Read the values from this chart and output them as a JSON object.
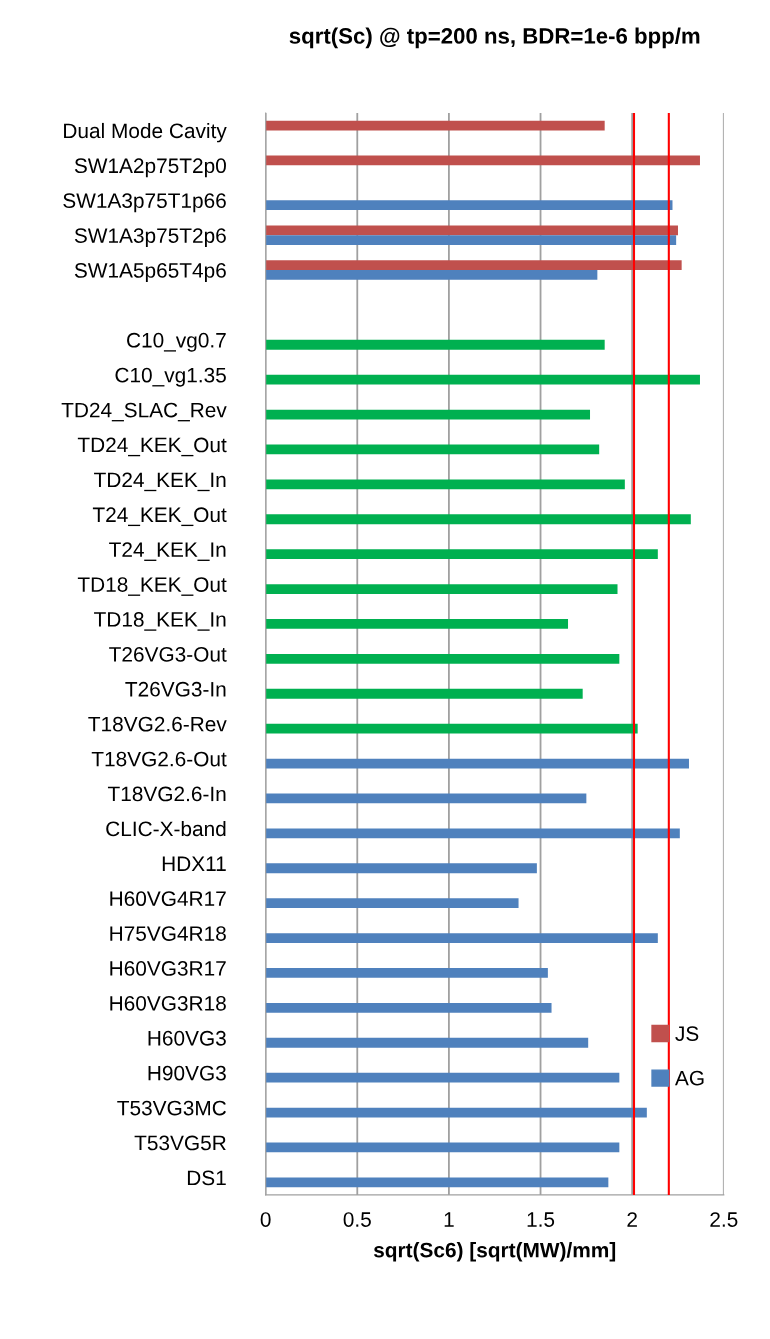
{
  "chart_data": {
    "type": "bar",
    "orientation": "horizontal",
    "title": "sqrt(Sc) @ tp=200 ns, BDR=1e-6 bpp/m",
    "xlabel": "sqrt(Sc6) [sqrt(MW)/mm]",
    "categories": [
      "Dual Mode Cavity",
      "SW1A2p75T2p0",
      "SW1A3p75T1p66",
      "SW1A3p75T2p6",
      "SW1A5p65T4p6",
      null,
      "C10_vg0.7",
      "C10_vg1.35",
      "TD24_SLAC_Rev",
      "TD24_KEK_Out",
      "TD24_KEK_In",
      "T24_KEK_Out",
      "T24_KEK_In",
      "TD18_KEK_Out",
      "TD18_KEK_In",
      "T26VG3-Out",
      "T26VG3-In",
      "T18VG2.6-Rev",
      "T18VG2.6-Out",
      "T18VG2.6-In",
      "CLIC-X-band",
      "HDX11",
      "H60VG4R17",
      "H75VG4R18",
      "H60VG3R17",
      "H60VG3R18",
      "H60VG3",
      "H90VG3",
      "T53VG3MC",
      "T53VG5R",
      "DS1"
    ],
    "series": [
      {
        "name": "JS",
        "color": "#c0504d",
        "values": [
          1.85,
          2.37,
          null,
          2.25,
          2.27,
          null,
          null,
          null,
          null,
          null,
          null,
          null,
          null,
          null,
          null,
          null,
          null,
          null,
          null,
          null,
          null,
          null,
          null,
          null,
          null,
          null,
          null,
          null,
          null,
          null,
          null
        ]
      },
      {
        "name": "AG",
        "color": "#4f81bd",
        "values": [
          null,
          null,
          2.22,
          2.24,
          1.81,
          null,
          1.85,
          2.37,
          1.77,
          1.82,
          1.96,
          2.32,
          2.14,
          1.92,
          1.65,
          1.93,
          1.73,
          2.03,
          2.31,
          1.75,
          2.26,
          1.48,
          1.38,
          2.14,
          1.54,
          1.56,
          1.76,
          1.93,
          2.08,
          1.93,
          1.87
        ],
        "colors": [
          "#4f81bd",
          "#4f81bd",
          "#4f81bd",
          "#4f81bd",
          "#4f81bd",
          "#4f81bd",
          "#00b050",
          "#00b050",
          "#00b050",
          "#00b050",
          "#00b050",
          "#00b050",
          "#00b050",
          "#00b050",
          "#00b050",
          "#00b050",
          "#00b050",
          "#00b050",
          "#4f81bd",
          "#4f81bd",
          "#4f81bd",
          "#4f81bd",
          "#4f81bd",
          "#4f81bd",
          "#4f81bd",
          "#4f81bd",
          "#4f81bd",
          "#4f81bd",
          "#4f81bd",
          "#4f81bd",
          "#4f81bd"
        ]
      }
    ],
    "xlim": [
      0,
      2.5
    ],
    "xticks": [
      0,
      0.5,
      1,
      1.5,
      2,
      2.5
    ],
    "grid": "x",
    "legend": "lower right",
    "ref_lines": [
      {
        "axis": "x",
        "value": 2.01,
        "color": "#ff0000"
      },
      {
        "axis": "x",
        "value": 2.2,
        "color": "#ff0000"
      }
    ]
  }
}
